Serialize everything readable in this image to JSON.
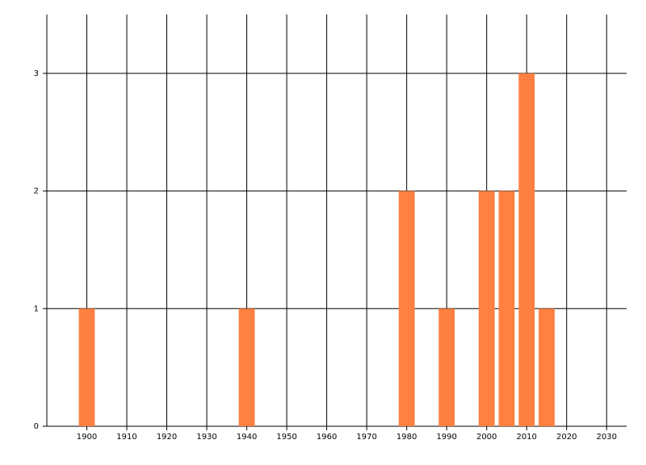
{
  "chart_data": {
    "type": "bar",
    "x": [
      1900,
      1940,
      1980,
      1990,
      2000,
      2005,
      2010,
      2015
    ],
    "values": [
      1,
      1,
      2,
      1,
      2,
      2,
      3,
      1
    ],
    "color": "#ff8040",
    "xlim": [
      1890,
      2035
    ],
    "xticks": [
      1900,
      1910,
      1920,
      1930,
      1940,
      1950,
      1960,
      1970,
      1980,
      1990,
      2000,
      2010,
      2020,
      2030
    ],
    "ylim": [
      0,
      3.5
    ],
    "yticks": [
      0,
      1,
      2,
      3
    ],
    "grid": true
  }
}
